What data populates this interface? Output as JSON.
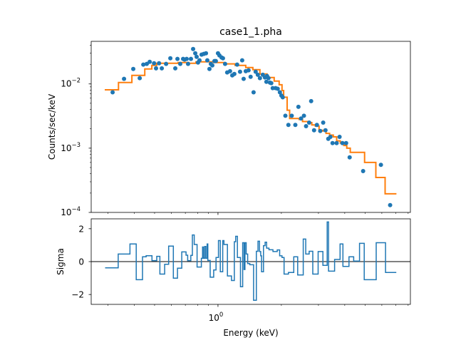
{
  "chart_data": [
    {
      "type": "scatter",
      "title": "case1_1.pha",
      "xlabel": "",
      "ylabel": "Counts/sec/keV",
      "xscale": "log",
      "yscale": "log",
      "xlim": [
        0.25,
        8.2
      ],
      "ylim": [
        0.0001,
        0.046
      ],
      "yticks": [
        {
          "base": "10",
          "exp": "−2",
          "value": 0.01
        },
        {
          "base": "10",
          "exp": "−3",
          "value": 0.001
        },
        {
          "base": "10",
          "exp": "−4",
          "value": 0.0001
        }
      ],
      "colors": {
        "data": "#1f77b4",
        "model": "#ff7f0e"
      },
      "data_points": {
        "x": [
          0.316,
          0.358,
          0.396,
          0.425,
          0.442,
          0.459,
          0.474,
          0.497,
          0.508,
          0.525,
          0.541,
          0.567,
          0.594,
          0.627,
          0.642,
          0.662,
          0.683,
          0.694,
          0.71,
          0.721,
          0.744,
          0.762,
          0.78,
          0.792,
          0.804,
          0.817,
          0.836,
          0.856,
          0.877,
          0.89,
          0.911,
          0.925,
          0.94,
          0.962,
          0.977,
          1.0,
          1.016,
          1.04,
          1.056,
          1.081,
          1.106,
          1.141,
          1.169,
          1.196,
          1.233,
          1.273,
          1.303,
          1.324,
          1.355,
          1.397,
          1.429,
          1.476,
          1.51,
          1.546,
          1.582,
          1.633,
          1.671,
          1.698,
          1.71,
          1.738,
          1.765,
          1.791,
          1.82,
          1.878,
          1.922,
          1.968,
          2.0,
          2.03,
          2.09,
          2.16,
          2.24,
          2.33,
          2.41,
          2.48,
          2.56,
          2.62,
          2.71,
          2.77,
          2.86,
          2.95,
          3.06,
          3.16,
          3.24,
          3.34,
          3.42,
          3.5,
          3.66,
          3.78,
          3.9,
          4.06,
          4.22,
          4.89,
          5.94,
          6.57
        ],
        "y": [
          0.0074,
          0.012,
          0.0171,
          0.0123,
          0.02,
          0.0205,
          0.0221,
          0.021,
          0.0175,
          0.021,
          0.0175,
          0.0205,
          0.0251,
          0.0175,
          0.0245,
          0.0205,
          0.0245,
          0.0239,
          0.0245,
          0.0205,
          0.0245,
          0.035,
          0.03,
          0.0264,
          0.0215,
          0.0233,
          0.0286,
          0.0293,
          0.03,
          0.0233,
          0.0171,
          0.0205,
          0.0194,
          0.0227,
          0.0227,
          0.03,
          0.0278,
          0.0258,
          0.0251,
          0.0205,
          0.0151,
          0.0158,
          0.0136,
          0.0143,
          0.02,
          0.0155,
          0.0233,
          0.012,
          0.0158,
          0.0163,
          0.0129,
          0.0074,
          0.0155,
          0.0139,
          0.0123,
          0.0139,
          0.0126,
          0.0108,
          0.0133,
          0.0123,
          0.0105,
          0.0103,
          0.0086,
          0.0086,
          0.0084,
          0.0074,
          0.0066,
          0.0062,
          0.0032,
          0.0023,
          0.0032,
          0.0023,
          0.0044,
          0.0029,
          0.0032,
          0.0022,
          0.0025,
          0.0054,
          0.0019,
          0.0023,
          0.00185,
          0.0025,
          0.0019,
          0.0014,
          0.0015,
          0.0012,
          0.0012,
          0.0015,
          0.0012,
          0.0012,
          0.00072,
          0.00044,
          0.00055,
          0.00013
        ]
      },
      "model_step": {
        "x": [
          0.29,
          0.337,
          0.39,
          0.449,
          0.485,
          0.512,
          0.647,
          0.727,
          0.786,
          0.954,
          1.073,
          1.205,
          1.355,
          1.465,
          1.582,
          1.71,
          1.849,
          1.953,
          2.014,
          2.05,
          2.13,
          2.19,
          2.43,
          2.52,
          2.69,
          2.79,
          2.9,
          3.02,
          3.14,
          3.26,
          3.39,
          3.53,
          3.66,
          3.81,
          3.96,
          4.09,
          4.25,
          4.97,
          5.62,
          6.22,
          7.04
        ],
        "y": [
          0.0081,
          0.0105,
          0.0136,
          0.0171,
          0.0194,
          0.021,
          0.0215,
          0.021,
          0.0221,
          0.0215,
          0.0205,
          0.0194,
          0.018,
          0.0167,
          0.0143,
          0.0126,
          0.0111,
          0.0097,
          0.0079,
          0.0062,
          0.0039,
          0.0029,
          0.0028,
          0.0026,
          0.0025,
          0.0023,
          0.0022,
          0.0019,
          0.00185,
          0.0017,
          0.0016,
          0.0015,
          0.0013,
          0.0012,
          0.0011,
          0.001,
          0.00086,
          0.0006,
          0.00035,
          0.000195,
          0.000195
        ]
      }
    },
    {
      "type": "line",
      "title": "",
      "xlabel": "Energy (keV)",
      "ylabel": "Sigma",
      "xscale": "log",
      "xlim": [
        0.25,
        8.2
      ],
      "ylim": [
        -2.6,
        2.6
      ],
      "xticks": [
        {
          "base": "10",
          "exp": "0",
          "value": 1
        }
      ],
      "yticks": [
        {
          "label": "2",
          "value": 2
        },
        {
          "label": "0",
          "value": 0
        },
        {
          "label": "−2",
          "value": -2
        }
      ],
      "reference_line": 0,
      "colors": {
        "residual": "#1f77b4",
        "reference": "#000000"
      },
      "residual_step": {
        "x": [
          0.291,
          0.336,
          0.382,
          0.409,
          0.438,
          0.456,
          0.486,
          0.512,
          0.53,
          0.558,
          0.583,
          0.614,
          0.642,
          0.673,
          0.705,
          0.718,
          0.743,
          0.756,
          0.771,
          0.796,
          0.834,
          0.845,
          0.853,
          0.865,
          0.876,
          0.888,
          0.895,
          0.918,
          0.954,
          0.979,
          1.005,
          1.026,
          1.053,
          1.067,
          1.109,
          1.159,
          1.196,
          1.214,
          1.237,
          1.279,
          1.31,
          1.33,
          1.343,
          1.361,
          1.383,
          1.416,
          1.476,
          1.521,
          1.549,
          1.574,
          1.595,
          1.611,
          1.645,
          1.675,
          1.702,
          1.747,
          1.824,
          1.911,
          1.963,
          2.014,
          2.06,
          2.16,
          2.29,
          2.39,
          2.54,
          2.61,
          2.71,
          2.82,
          2.99,
          3.15,
          3.3,
          3.35,
          3.58,
          3.8,
          3.92,
          4.19,
          4.41,
          4.7,
          4.95,
          5.64,
          6.25,
          7.03
        ],
        "y": [
          -0.38,
          0.46,
          1.07,
          -1.1,
          0.29,
          0.36,
          0.06,
          0.32,
          -0.76,
          -0.16,
          0.94,
          -1.01,
          -0.4,
          0.59,
          0.39,
          0.06,
          0.38,
          1.62,
          1.04,
          -0.33,
          0.2,
          0.89,
          0.2,
          0.92,
          0.2,
          1.07,
          0.07,
          -0.95,
          -0.51,
          0.25,
          1.28,
          -0.62,
          1.28,
          1.04,
          -0.87,
          -1.15,
          1.21,
          1.54,
          0.25,
          -1.53,
          1.15,
          -0.48,
          1.15,
          0.46,
          -0.12,
          -0.19,
          -2.35,
          0.63,
          1.24,
          0.61,
          0.35,
          -0.62,
          0.97,
          1.18,
          0.82,
          0.72,
          0.61,
          0.71,
          0.35,
          0.25,
          -0.76,
          -0.66,
          0.29,
          -0.81,
          1.37,
          0.46,
          0.63,
          -0.76,
          0.61,
          -0.23,
          2.41,
          -0.58,
          0.13,
          1.07,
          -0.29,
          0.29,
          0.03,
          1.11,
          -1.1,
          1.15,
          -0.66,
          -0.66
        ]
      }
    }
  ]
}
